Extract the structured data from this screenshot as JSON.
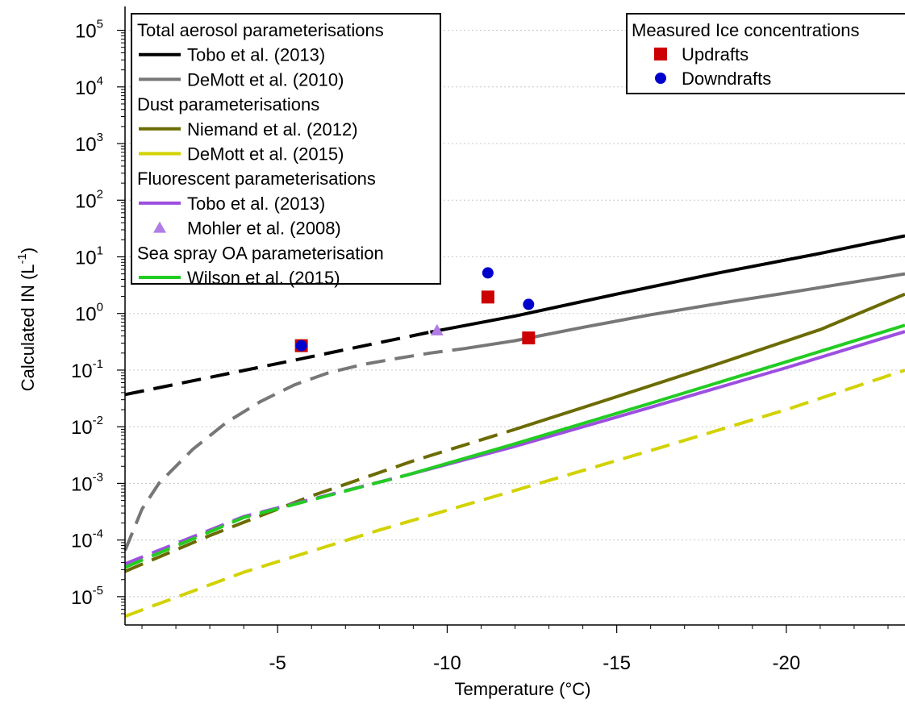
{
  "chart_data": {
    "type": "line",
    "xlabel": "Temperature (°C)",
    "ylabel_main": "Calculated IN (L",
    "ylabel_sup": "-1",
    "ylabel_close": ")",
    "x_reversed": true,
    "xlim": [
      -0.5,
      -23.5
    ],
    "ylim_log10": [
      -5.5,
      5.25
    ],
    "y_scale": "log",
    "x_ticks": [
      -5,
      -10,
      -15,
      -20
    ],
    "x_tick_labels": [
      "-5",
      "-10",
      "-15",
      "-20"
    ],
    "y_ticks": [
      -5,
      -4,
      -3,
      -2,
      -1,
      0,
      1,
      2,
      3,
      4,
      5
    ],
    "y_tick_base": "10",
    "y_tick_exponents": [
      "-5",
      "-4",
      "-3",
      "-2",
      "-1",
      "0",
      "1",
      "2",
      "3",
      "4",
      "5"
    ],
    "grid": "horizontal dotted",
    "series": [
      {
        "key": "tobo_total",
        "color": "#000000",
        "solid_from": -9.5,
        "points": [
          [
            -0.5,
            0.037
          ],
          [
            -5.5,
            0.15
          ],
          [
            -9.5,
            0.47
          ],
          [
            -12,
            0.9
          ],
          [
            -15,
            2.2
          ],
          [
            -18,
            5.2
          ],
          [
            -21,
            11.5
          ],
          [
            -23.5,
            23.5
          ]
        ]
      },
      {
        "key": "demott2010",
        "color": "#777777",
        "solid_from": -10.3,
        "points": [
          [
            -0.5,
            6.5e-05
          ],
          [
            -1,
            0.00035
          ],
          [
            -1.5,
            0.001
          ],
          [
            -2.5,
            0.004
          ],
          [
            -3.5,
            0.012
          ],
          [
            -4.5,
            0.028
          ],
          [
            -5.5,
            0.055
          ],
          [
            -6.5,
            0.09
          ],
          [
            -7.5,
            0.125
          ],
          [
            -8.5,
            0.16
          ],
          [
            -9.5,
            0.2
          ],
          [
            -10.5,
            0.24
          ],
          [
            -12,
            0.33
          ],
          [
            -14,
            0.57
          ],
          [
            -16,
            0.95
          ],
          [
            -18,
            1.5
          ],
          [
            -20,
            2.3
          ],
          [
            -22,
            3.6
          ],
          [
            -23.5,
            5.0
          ]
        ]
      },
      {
        "key": "niemand",
        "color": "#6b6b00",
        "solid_from": -12,
        "points": [
          [
            -0.5,
            2.8e-05
          ],
          [
            -3,
            0.00012
          ],
          [
            -6,
            0.0006
          ],
          [
            -9,
            0.0025
          ],
          [
            -12,
            0.009
          ],
          [
            -15,
            0.034
          ],
          [
            -18,
            0.13
          ],
          [
            -21,
            0.52
          ],
          [
            -23.5,
            2.2
          ]
        ]
      },
      {
        "key": "demott2015",
        "color": "#d2d200",
        "solid_from": null,
        "points": [
          [
            -0.5,
            4.5e-06
          ],
          [
            -4,
            2.7e-05
          ],
          [
            -8,
            0.00015
          ],
          [
            -12,
            0.00075
          ],
          [
            -16,
            0.0038
          ],
          [
            -20,
            0.02
          ],
          [
            -23.5,
            0.1
          ]
        ]
      },
      {
        "key": "tobo_fluor",
        "color": "#9d4fe0",
        "solid_from": -8.8,
        "points": [
          [
            -0.5,
            3.8e-05
          ],
          [
            -4,
            0.00026
          ],
          [
            -8.8,
            0.0014
          ],
          [
            -12,
            0.0045
          ],
          [
            -16,
            0.022
          ],
          [
            -20,
            0.11
          ],
          [
            -23.5,
            0.48
          ]
        ]
      },
      {
        "key": "wilson",
        "color": "#22cc22",
        "solid_from": -8.8,
        "points": [
          [
            -0.5,
            3.3e-05
          ],
          [
            -4,
            0.00025
          ],
          [
            -8.8,
            0.0014
          ],
          [
            -12,
            0.005
          ],
          [
            -16,
            0.026
          ],
          [
            -20,
            0.14
          ],
          [
            -23.5,
            0.62
          ]
        ]
      }
    ],
    "mohler": {
      "color": "#b07ce6",
      "points": [
        [
          -9.7,
          0.5
        ]
      ]
    },
    "updrafts": {
      "color": "#cc0000",
      "points": [
        [
          -5.7,
          0.27
        ],
        [
          -11.2,
          1.95
        ],
        [
          -12.4,
          0.37
        ]
      ]
    },
    "downdrafts": {
      "color": "#0000cc",
      "points": [
        [
          -5.7,
          0.27
        ],
        [
          -11.2,
          5.2
        ],
        [
          -12.4,
          1.45
        ]
      ]
    }
  },
  "legend_left": {
    "groups": [
      {
        "title": "Total aerosol parameterisations",
        "entries": [
          {
            "label": "Tobo et al. (2013)",
            "color": "#000000",
            "marker": "line"
          },
          {
            "label": "DeMott et al. (2010)",
            "color": "#777777",
            "marker": "line"
          }
        ]
      },
      {
        "title": "Dust parameterisations",
        "entries": [
          {
            "label": "Niemand et al. (2012)",
            "color": "#6b6b00",
            "marker": "line"
          },
          {
            "label": "DeMott et al. (2015)",
            "color": "#d2d200",
            "marker": "line"
          }
        ]
      },
      {
        "title": "Fluorescent parameterisations",
        "entries": [
          {
            "label": "Tobo et al. (2013)",
            "color": "#9d4fe0",
            "marker": "line"
          },
          {
            "label": "Mohler et al. (2008)",
            "color": "#b07ce6",
            "marker": "triangle"
          }
        ]
      },
      {
        "title": "Sea spray OA parameterisation",
        "entries": [
          {
            "label": "Wilson et al. (2015)",
            "color": "#22cc22",
            "marker": "line"
          }
        ]
      }
    ]
  },
  "legend_right": {
    "title": "Measured Ice concentrations",
    "entries": [
      {
        "label": "Updrafts",
        "color": "#cc0000",
        "marker": "square"
      },
      {
        "label": "Downdrafts",
        "color": "#0000cc",
        "marker": "circle"
      }
    ]
  }
}
